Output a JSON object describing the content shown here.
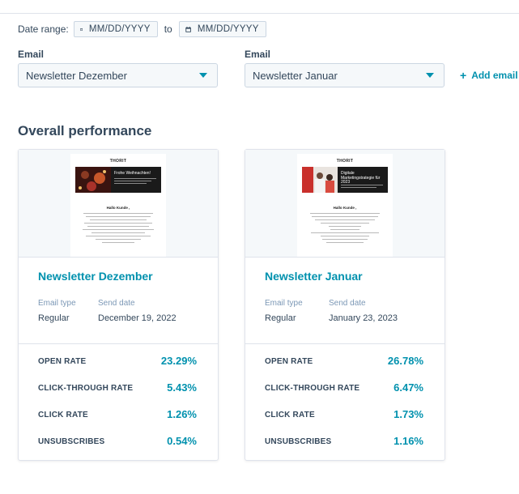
{
  "filters": {
    "date_range_label": "Date range:",
    "start_date_placeholder": "MM/DD/YYYY",
    "to_label": "to",
    "end_date_placeholder": "MM/DD/YYYY"
  },
  "email_selectors": [
    {
      "label": "Email",
      "value": "Newsletter Dezember"
    },
    {
      "label": "Email",
      "value": "Newsletter Januar"
    }
  ],
  "add_email_label": "Add email",
  "section_title": "Overall performance",
  "cards": [
    {
      "name": "Newsletter Dezember",
      "email_type_label": "Email type",
      "email_type": "Regular",
      "send_date_label": "Send date",
      "send_date": "December 19, 2022",
      "preview": {
        "logo": "THORIT",
        "hero_title": "Frohe Weihnachten!",
        "greeting": "Hallo Kunde ,"
      },
      "stats": [
        {
          "label": "OPEN RATE",
          "value": "23.29%"
        },
        {
          "label": "CLICK-THROUGH RATE",
          "value": "5.43%"
        },
        {
          "label": "CLICK RATE",
          "value": "1.26%"
        },
        {
          "label": "UNSUBSCRIBES",
          "value": "0.54%"
        }
      ]
    },
    {
      "name": "Newsletter Januar",
      "email_type_label": "Email type",
      "email_type": "Regular",
      "send_date_label": "Send date",
      "send_date": "January 23, 2023",
      "preview": {
        "logo": "THORIT",
        "hero_title": "Digitale Marketingstrategie für 2023",
        "greeting": "Hallo Kunde ,"
      },
      "stats": [
        {
          "label": "OPEN RATE",
          "value": "26.78%"
        },
        {
          "label": "CLICK-THROUGH RATE",
          "value": "6.47%"
        },
        {
          "label": "CLICK RATE",
          "value": "1.73%"
        },
        {
          "label": "UNSUBSCRIBES",
          "value": "1.16%"
        }
      ]
    }
  ],
  "colors": {
    "accent": "#0091ae",
    "text": "#33475b",
    "muted": "#7c98b6",
    "border": "#dfe3eb"
  }
}
